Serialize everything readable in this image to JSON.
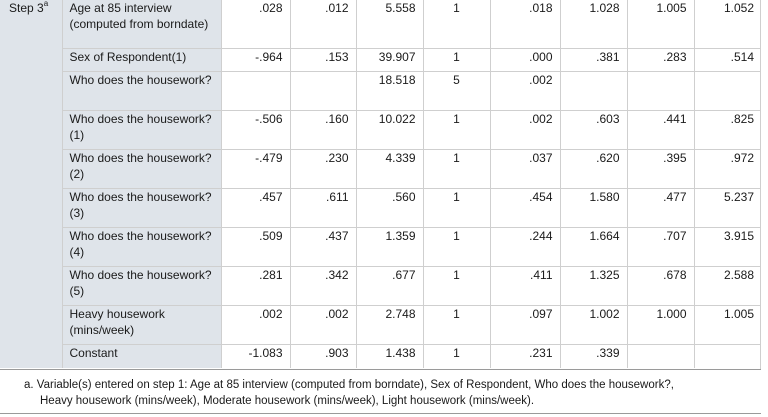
{
  "step_label": "Step 3",
  "step_sup": "a",
  "rows": [
    {
      "label": "Age at 85 interview (computed from borndate)",
      "b": ".028",
      "se": ".012",
      "wald": "5.558",
      "df": "1",
      "sig": ".018",
      "expb": "1.028",
      "lower": "1.005",
      "upper": "1.052"
    },
    {
      "label": "Sex of Respondent(1)",
      "b": "-.964",
      "se": ".153",
      "wald": "39.907",
      "df": "1",
      "sig": ".000",
      "expb": ".381",
      "lower": ".283",
      "upper": ".514"
    },
    {
      "label": "Who does the housework?",
      "b": "",
      "se": "",
      "wald": "18.518",
      "df": "5",
      "sig": ".002",
      "expb": "",
      "lower": "",
      "upper": ""
    },
    {
      "label": "Who does the housework?(1)",
      "b": "-.506",
      "se": ".160",
      "wald": "10.022",
      "df": "1",
      "sig": ".002",
      "expb": ".603",
      "lower": ".441",
      "upper": ".825"
    },
    {
      "label": "Who does the housework?(2)",
      "b": "-.479",
      "se": ".230",
      "wald": "4.339",
      "df": "1",
      "sig": ".037",
      "expb": ".620",
      "lower": ".395",
      "upper": ".972"
    },
    {
      "label": "Who does the housework?(3)",
      "b": ".457",
      "se": ".611",
      "wald": ".560",
      "df": "1",
      "sig": ".454",
      "expb": "1.580",
      "lower": ".477",
      "upper": "5.237"
    },
    {
      "label": "Who does the housework?(4)",
      "b": ".509",
      "se": ".437",
      "wald": "1.359",
      "df": "1",
      "sig": ".244",
      "expb": "1.664",
      "lower": ".707",
      "upper": "3.915"
    },
    {
      "label": "Who does the housework?(5)",
      "b": ".281",
      "se": ".342",
      "wald": ".677",
      "df": "1",
      "sig": ".411",
      "expb": "1.325",
      "lower": ".678",
      "upper": "2.588"
    },
    {
      "label": "Heavy housework (mins/week)",
      "b": ".002",
      "se": ".002",
      "wald": "2.748",
      "df": "1",
      "sig": ".097",
      "expb": "1.002",
      "lower": "1.000",
      "upper": "1.005"
    },
    {
      "label": "Constant",
      "b": "-1.083",
      "se": ".903",
      "wald": "1.438",
      "df": "1",
      "sig": ".231",
      "expb": ".339",
      "lower": "",
      "upper": ""
    }
  ],
  "footnote": {
    "line1": "a. Variable(s) entered on step 1: Age at 85 interview (computed from borndate), Sex of Respondent, Who does the housework?,",
    "line2": "Heavy housework (mins/week), Moderate housework (mins/week), Light housework (mins/week)."
  }
}
